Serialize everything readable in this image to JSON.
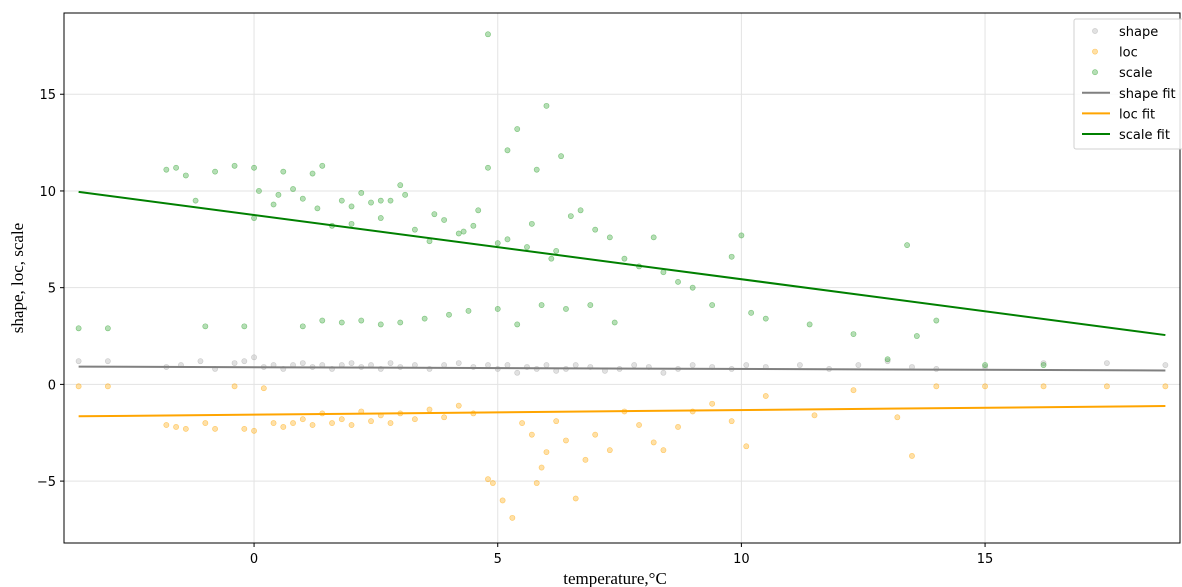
{
  "chart_data": {
    "type": "scatter",
    "xlabel": "temperature,°C",
    "ylabel": "shape, loc, scale",
    "xlim": [
      -3.9,
      19.0
    ],
    "ylim": [
      -8.2,
      19.2
    ],
    "xticks": [
      0,
      5,
      10,
      15
    ],
    "yticks": [
      -5,
      0,
      5,
      10,
      15
    ],
    "xtick_labels": [
      "0",
      "5",
      "10",
      "15"
    ],
    "ytick_labels": [
      "−5",
      "0",
      "5",
      "10",
      "15"
    ],
    "grid": true,
    "legend_position": "top-right",
    "series": [
      {
        "name": "shape",
        "kind": "scatter",
        "color": "#a9a9a9",
        "x": [
          -3.6,
          -3.0,
          -1.8,
          -1.5,
          -1.1,
          -0.8,
          -0.4,
          -0.2,
          0.0,
          0.2,
          0.4,
          0.6,
          0.8,
          1.0,
          1.2,
          1.4,
          1.6,
          1.8,
          2.0,
          2.2,
          2.4,
          2.6,
          2.8,
          3.0,
          3.3,
          3.6,
          3.9,
          4.2,
          4.5,
          4.8,
          5.0,
          5.2,
          5.4,
          5.6,
          5.8,
          6.0,
          6.2,
          6.4,
          6.6,
          6.9,
          7.2,
          7.5,
          7.8,
          8.1,
          8.4,
          8.7,
          9.0,
          9.4,
          9.8,
          10.1,
          10.5,
          11.2,
          11.8,
          12.4,
          13.0,
          13.5,
          14.0,
          15.0,
          16.2,
          17.5,
          18.7
        ],
        "y": [
          1.2,
          1.2,
          0.9,
          1.0,
          1.2,
          0.8,
          1.1,
          1.2,
          1.4,
          0.9,
          1.0,
          0.8,
          1.0,
          1.1,
          0.9,
          1.0,
          0.8,
          1.0,
          1.1,
          0.9,
          1.0,
          0.8,
          1.1,
          0.9,
          1.0,
          0.8,
          1.0,
          1.1,
          0.9,
          1.0,
          0.8,
          1.0,
          0.6,
          0.9,
          0.8,
          1.0,
          0.7,
          0.8,
          1.0,
          0.9,
          0.7,
          0.8,
          1.0,
          0.9,
          0.6,
          0.8,
          1.0,
          0.9,
          0.8,
          1.0,
          0.9,
          1.0,
          0.8,
          1.0,
          1.2,
          0.9,
          0.8,
          0.9,
          1.1,
          1.1,
          1.0
        ]
      },
      {
        "name": "loc",
        "kind": "scatter",
        "color": "#ffa500",
        "x": [
          -3.6,
          -3.0,
          -1.8,
          -1.6,
          -1.4,
          -1.0,
          -0.8,
          -0.4,
          -0.2,
          0.0,
          0.2,
          0.4,
          0.6,
          0.8,
          1.0,
          1.2,
          1.4,
          1.6,
          1.8,
          2.0,
          2.2,
          2.4,
          2.6,
          2.8,
          3.0,
          3.3,
          3.6,
          3.9,
          4.2,
          4.5,
          4.8,
          4.9,
          5.1,
          5.3,
          5.5,
          5.7,
          5.8,
          5.9,
          6.0,
          6.2,
          6.4,
          6.6,
          6.8,
          7.0,
          7.3,
          7.6,
          7.9,
          8.2,
          8.4,
          8.7,
          9.0,
          9.4,
          9.8,
          10.1,
          10.5,
          11.5,
          12.3,
          13.2,
          13.5,
          14.0,
          15.0,
          16.2,
          17.5,
          18.7
        ],
        "y": [
          -0.1,
          -0.1,
          -2.1,
          -2.2,
          -2.3,
          -2.0,
          -2.3,
          -0.1,
          -2.3,
          -2.4,
          -0.2,
          -2.0,
          -2.2,
          -2.0,
          -1.8,
          -2.1,
          -1.5,
          -2.0,
          -1.8,
          -2.1,
          -1.4,
          -1.9,
          -1.6,
          -2.0,
          -1.5,
          -1.8,
          -1.3,
          -1.7,
          -1.1,
          -1.5,
          -4.9,
          -5.1,
          -6.0,
          -6.9,
          -2.0,
          -2.6,
          -5.1,
          -4.3,
          -3.5,
          -1.9,
          -2.9,
          -5.9,
          -3.9,
          -2.6,
          -3.4,
          -1.4,
          -2.1,
          -3.0,
          -3.4,
          -2.2,
          -1.4,
          -1.0,
          -1.9,
          -3.2,
          -0.6,
          -1.6,
          -0.3,
          -1.7,
          -3.7,
          -0.1,
          -0.1,
          -0.1,
          -0.1,
          -0.1
        ]
      },
      {
        "name": "scale",
        "kind": "scatter",
        "color": "#2ca02c",
        "x": [
          -3.6,
          -3.0,
          -1.8,
          -1.6,
          -1.4,
          -1.2,
          -1.0,
          -0.8,
          -0.4,
          -0.2,
          0.0,
          0.1,
          0.4,
          0.6,
          0.8,
          1.0,
          1.2,
          1.4,
          1.6,
          1.8,
          2.0,
          2.2,
          2.4,
          2.6,
          2.8,
          3.0,
          3.3,
          3.6,
          3.9,
          4.2,
          4.5,
          4.8,
          4.8,
          5.0,
          5.2,
          5.4,
          5.6,
          5.8,
          6.0,
          6.1,
          6.3,
          6.5,
          6.7,
          7.0,
          7.3,
          7.6,
          7.9,
          8.2,
          8.4,
          8.7,
          9.0,
          9.4,
          9.8,
          10.0,
          10.2,
          10.5,
          11.4,
          12.3,
          13.0,
          13.4,
          13.6,
          14.0,
          15.0,
          16.2,
          1.0,
          1.4,
          1.8,
          2.2,
          2.6,
          3.0,
          3.5,
          4.0,
          4.4,
          5.0,
          5.4,
          5.9,
          6.4,
          6.9,
          7.4,
          0.0,
          0.5,
          1.3,
          2.0,
          2.6,
          3.1,
          3.7,
          4.3,
          4.6,
          5.2,
          5.7,
          6.2
        ],
        "y": [
          2.9,
          2.9,
          11.1,
          11.2,
          10.8,
          9.5,
          3.0,
          11.0,
          11.3,
          3.0,
          11.2,
          10.0,
          9.3,
          11.0,
          10.1,
          9.6,
          10.9,
          11.3,
          8.2,
          9.5,
          9.2,
          9.9,
          9.4,
          8.6,
          9.5,
          10.3,
          8.0,
          7.4,
          8.5,
          7.8,
          8.2,
          18.1,
          11.2,
          7.3,
          12.1,
          13.2,
          7.1,
          11.1,
          14.4,
          6.5,
          11.8,
          8.7,
          9.0,
          8.0,
          7.6,
          6.5,
          6.1,
          7.6,
          5.8,
          5.3,
          5.0,
          4.1,
          6.6,
          7.7,
          3.7,
          3.4,
          3.1,
          2.6,
          1.3,
          7.2,
          2.5,
          3.3,
          1.0,
          1.0,
          3.0,
          3.3,
          3.2,
          3.3,
          3.1,
          3.2,
          3.4,
          3.6,
          3.8,
          3.9,
          3.1,
          4.1,
          3.9,
          4.1,
          3.2,
          8.6,
          9.8,
          9.1,
          8.3,
          9.5,
          9.8,
          8.8,
          7.9,
          9.0,
          7.5,
          8.3,
          6.9
        ]
      },
      {
        "name": "shape fit",
        "kind": "line",
        "color": "#808080",
        "x": [
          -3.6,
          18.7
        ],
        "y": [
          0.92,
          0.72
        ]
      },
      {
        "name": "loc fit",
        "kind": "line",
        "color": "#ffa500",
        "x": [
          -3.6,
          18.7
        ],
        "y": [
          -1.65,
          -1.12
        ]
      },
      {
        "name": "scale fit",
        "kind": "line",
        "color": "#008000",
        "x": [
          -3.6,
          18.7
        ],
        "y": [
          9.95,
          2.55
        ]
      }
    ]
  }
}
